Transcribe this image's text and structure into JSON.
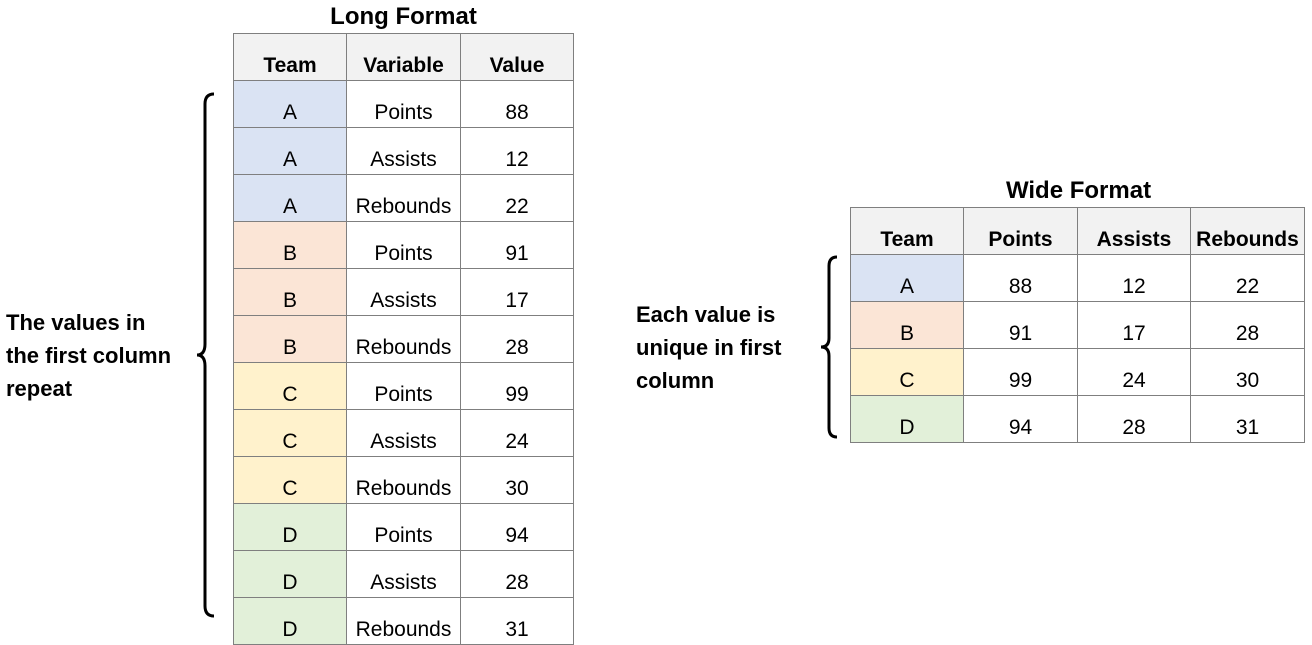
{
  "long": {
    "title": "Long Format",
    "headers": [
      "Team",
      "Variable",
      "Value"
    ],
    "rows": [
      [
        "A",
        "Points",
        "88"
      ],
      [
        "A",
        "Assists",
        "12"
      ],
      [
        "A",
        "Rebounds",
        "22"
      ],
      [
        "B",
        "Points",
        "91"
      ],
      [
        "B",
        "Assists",
        "17"
      ],
      [
        "B",
        "Rebounds",
        "28"
      ],
      [
        "C",
        "Points",
        "99"
      ],
      [
        "C",
        "Assists",
        "24"
      ],
      [
        "C",
        "Rebounds",
        "30"
      ],
      [
        "D",
        "Points",
        "94"
      ],
      [
        "D",
        "Assists",
        "28"
      ],
      [
        "D",
        "Rebounds",
        "31"
      ]
    ],
    "caption": [
      "The values in",
      "the first column",
      "repeat"
    ]
  },
  "wide": {
    "title": "Wide Format",
    "headers": [
      "Team",
      "Points",
      "Assists",
      "Rebounds"
    ],
    "rows": [
      [
        "A",
        "88",
        "12",
        "22"
      ],
      [
        "B",
        "91",
        "17",
        "28"
      ],
      [
        "C",
        "99",
        "24",
        "30"
      ],
      [
        "D",
        "94",
        "28",
        "31"
      ]
    ],
    "caption": [
      "Each value is",
      "unique in first",
      "column"
    ]
  },
  "team_colors": {
    "A": "#dae3f3",
    "B": "#fbe5d6",
    "C": "#fff2cc",
    "D": "#e2f0d9"
  }
}
